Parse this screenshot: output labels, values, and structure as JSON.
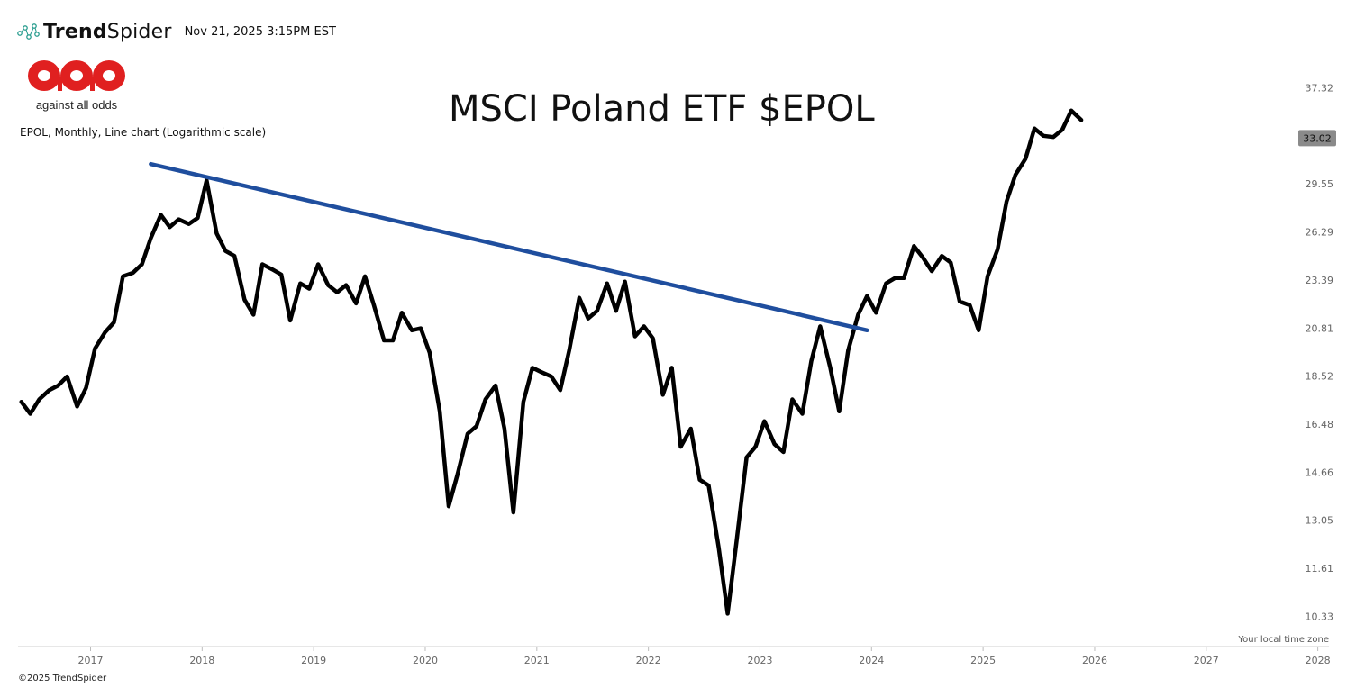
{
  "header": {
    "brand_light": "Trend",
    "brand_rest": "Spider",
    "timestamp": "Nov 21, 2025 3:15PM EST"
  },
  "aao": {
    "tagline": "against all odds"
  },
  "footer": {
    "copyright": "©2025 TrendSpider"
  },
  "timezone_label": "Your local time zone",
  "colors": {
    "price_line": "#000000",
    "trend_line": "#1f4e9e",
    "logo_red": "#e02020",
    "badge_bg": "#8a8a8a"
  },
  "chart_data": {
    "type": "line",
    "title": "MSCI Poland ETF $EPOL",
    "subtitle": "EPOL, Monthly, Line chart (Logarithmic scale)",
    "y_scale": "log",
    "ylim": [
      9.6,
      40.5
    ],
    "xlim": [
      2016.35,
      2028.1
    ],
    "x_ticks": [
      "2017",
      "2018",
      "2019",
      "2020",
      "2021",
      "2022",
      "2023",
      "2024",
      "2025",
      "2026",
      "2027",
      "2028"
    ],
    "y_ticks": [
      "37.32",
      "29.55",
      "26.29",
      "23.39",
      "20.81",
      "18.52",
      "16.48",
      "14.66",
      "13.05",
      "11.61",
      "10.33"
    ],
    "last_price": "33.02",
    "grid": false,
    "series": [
      {
        "x": [
          2016.38,
          2016.46,
          2016.54,
          2016.63,
          2016.71,
          2016.79,
          2016.88,
          2016.96,
          2017.04,
          2017.13,
          2017.21,
          2017.29,
          2017.38,
          2017.46,
          2017.54,
          2017.63,
          2017.71,
          2017.79,
          2017.88,
          2017.96,
          2018.04,
          2018.13,
          2018.21,
          2018.29,
          2018.38,
          2018.46,
          2018.54,
          2018.63,
          2018.71,
          2018.79,
          2018.88,
          2018.96,
          2019.04,
          2019.13,
          2019.21,
          2019.29,
          2019.38,
          2019.46,
          2019.54,
          2019.63,
          2019.71,
          2019.79,
          2019.88,
          2019.96,
          2020.04,
          2020.13,
          2020.21,
          2020.29,
          2020.38,
          2020.46,
          2020.54,
          2020.63,
          2020.71,
          2020.79,
          2020.88,
          2020.96,
          2021.04,
          2021.13,
          2021.21,
          2021.29,
          2021.38,
          2021.46,
          2021.54,
          2021.63,
          2021.71,
          2021.79,
          2021.88,
          2021.96,
          2022.04,
          2022.13,
          2022.21,
          2022.29,
          2022.38,
          2022.46,
          2022.54,
          2022.63,
          2022.71,
          2022.79,
          2022.88,
          2022.96,
          2023.04,
          2023.13,
          2023.21,
          2023.29,
          2023.38,
          2023.46,
          2023.54,
          2023.63,
          2023.71,
          2023.79,
          2023.88,
          2023.96,
          2024.04,
          2024.13,
          2024.21,
          2024.29,
          2024.38,
          2024.46,
          2024.54,
          2024.63,
          2024.71,
          2024.79,
          2024.88,
          2024.96,
          2025.04,
          2025.13,
          2025.21,
          2025.29,
          2025.38,
          2025.46,
          2025.54,
          2025.63,
          2025.71,
          2025.79,
          2025.88
        ],
        "values": [
          17.4,
          16.9,
          17.5,
          17.9,
          18.1,
          18.5,
          17.2,
          18.0,
          19.8,
          20.6,
          21.1,
          23.6,
          23.8,
          24.3,
          25.9,
          27.4,
          26.6,
          27.1,
          26.8,
          27.2,
          29.8,
          26.2,
          25.1,
          24.8,
          22.3,
          21.5,
          24.3,
          24.0,
          23.7,
          21.2,
          23.2,
          22.9,
          24.3,
          23.1,
          22.7,
          23.1,
          22.1,
          23.6,
          22.0,
          20.2,
          20.2,
          21.6,
          20.7,
          20.8,
          19.6,
          17.0,
          13.5,
          14.6,
          16.1,
          16.4,
          17.5,
          18.1,
          16.3,
          13.3,
          17.4,
          18.9,
          18.7,
          18.5,
          17.9,
          19.7,
          22.4,
          21.3,
          21.7,
          23.2,
          21.7,
          23.3,
          20.4,
          20.9,
          20.3,
          17.7,
          18.9,
          15.6,
          16.3,
          14.4,
          14.2,
          12.2,
          10.4,
          12.4,
          15.2,
          15.6,
          16.6,
          15.7,
          15.4,
          17.5,
          16.9,
          19.2,
          20.9,
          18.9,
          17.0,
          19.7,
          21.5,
          22.5,
          21.6,
          23.2,
          23.5,
          23.5,
          25.4,
          24.7,
          23.9,
          24.8,
          24.4,
          22.2,
          22.0,
          20.7,
          23.6,
          25.2,
          28.3,
          30.2,
          31.4,
          33.8,
          33.2,
          33.1,
          33.7,
          35.3,
          34.5
        ]
      }
    ],
    "trendline": {
      "x": [
        2017.54,
        2023.96
      ],
      "values": [
        31.0,
        20.7
      ]
    }
  }
}
